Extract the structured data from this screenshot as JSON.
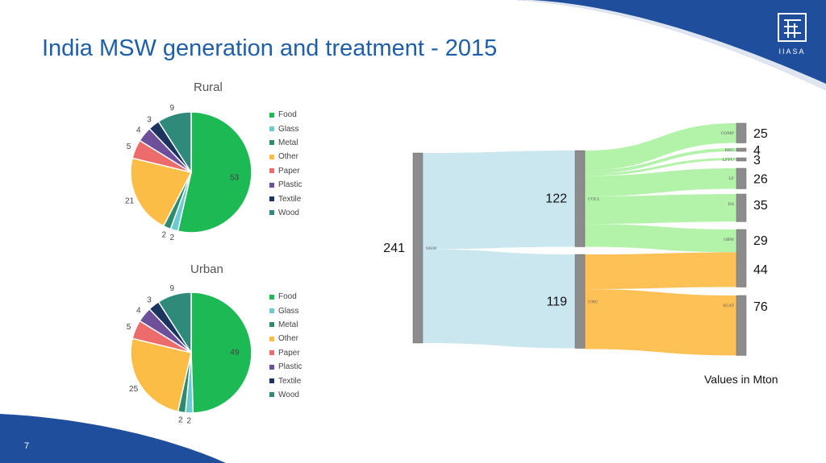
{
  "title": "India MSW generation and treatment - 2015",
  "page_number": "7",
  "units_note": "Values in Mton",
  "logo": {
    "text": "IIASA"
  },
  "colors": {
    "Food": "#1db954",
    "Glass": "#6ccbd2",
    "Metal": "#2e8b6e",
    "Other": "#fbbd45",
    "Paper": "#ec6b6b",
    "Plastic": "#6e4f99",
    "Textile": "#1c3560",
    "Wood": "#2f8a7c",
    "brand_blue": "#1f4e9c"
  },
  "chart_data": [
    {
      "type": "pie",
      "title": "Rural",
      "legend_position": "right",
      "labels": [
        "Food",
        "Glass",
        "Metal",
        "Other",
        "Paper",
        "Plastic",
        "Textile",
        "Wood"
      ],
      "values": [
        53,
        2,
        2,
        21,
        5,
        4,
        3,
        9
      ]
    },
    {
      "type": "pie",
      "title": "Urban",
      "legend_position": "right",
      "labels": [
        "Food",
        "Glass",
        "Metal",
        "Other",
        "Paper",
        "Plastic",
        "Textile",
        "Wood"
      ],
      "values": [
        49,
        2,
        2,
        25,
        5,
        4,
        3,
        9
      ]
    }
  ],
  "sankey": {
    "nodes": [
      {
        "id": "MSW",
        "value": 241
      },
      {
        "id": "COLL",
        "value": 122
      },
      {
        "id": "UNC",
        "value": 119
      },
      {
        "id": "COMP",
        "value": 25
      },
      {
        "id": "REC",
        "value": 4
      },
      {
        "id": "LFFU",
        "value": 3,
        "label": "LFFU"
      },
      {
        "id": "LF",
        "value": 26
      },
      {
        "id": "DS",
        "value": 35
      },
      {
        "id": "OBW",
        "value": 29
      },
      {
        "id": "SCAT",
        "value": 76
      }
    ],
    "unc_extra_value": 44,
    "links": [
      {
        "source": "MSW",
        "target": "COLL",
        "value": 122
      },
      {
        "source": "MSW",
        "target": "UNC",
        "value": 119
      },
      {
        "source": "COLL",
        "target": "COMP",
        "value": 25
      },
      {
        "source": "COLL",
        "target": "REC",
        "value": 4
      },
      {
        "source": "COLL",
        "target": "LFFU",
        "value": 3
      },
      {
        "source": "COLL",
        "target": "LF",
        "value": 26
      },
      {
        "source": "COLL",
        "target": "DS",
        "value": 35
      },
      {
        "source": "COLL",
        "target": "OBW",
        "value": 29
      },
      {
        "source": "UNC",
        "target": "OBW",
        "value": 44
      },
      {
        "source": "UNC",
        "target": "SCAT",
        "value": 76
      }
    ]
  }
}
